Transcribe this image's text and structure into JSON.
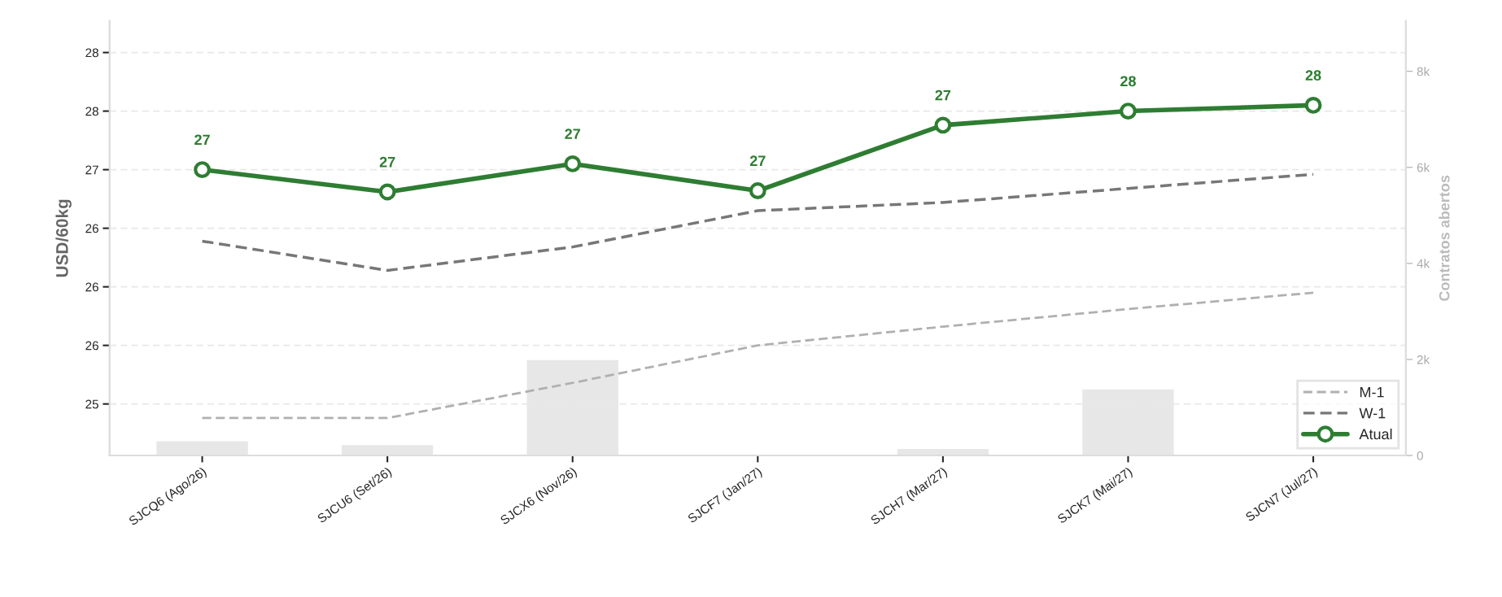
{
  "chart_data": {
    "type": "line",
    "ylabel": "USD/60kg",
    "y2label": "Contratos abertos",
    "categories": [
      "SJCQ6 (Ago/26)",
      "SJCU6 (Set/26)",
      "SJCX6 (Nov/26)",
      "SJCF7 (Jan/27)",
      "SJCH7 (Mar/27)",
      "SJCK7 (Mai/27)",
      "SJCN7 (Jul/27)"
    ],
    "series": [
      {
        "type": "bar",
        "axis": "y2",
        "color": "#e6e7e6",
        "values": [
          310,
          230,
          2000,
          null,
          150,
          1390,
          null
        ]
      },
      {
        "name": "M-1",
        "color": "#b0b0b0",
        "line_style": "dashed",
        "values": [
          24.88,
          24.88,
          25.18,
          25.5,
          25.66,
          25.81,
          25.95
        ]
      },
      {
        "name": "W-1",
        "color": "#777777",
        "line_style": "dashed",
        "values": [
          26.39,
          26.14,
          26.34,
          26.65,
          26.72,
          26.84,
          26.96
        ]
      },
      {
        "name": "Atual",
        "color": "#2e7d32",
        "line_style": "solid",
        "marker": "circle",
        "values": [
          27.0,
          26.81,
          27.05,
          26.82,
          27.38,
          27.5,
          27.55
        ],
        "value_labels": [
          "27",
          "27",
          "27",
          "27",
          "27",
          "28",
          "28"
        ]
      }
    ],
    "ylim": [
      24.56,
      28.27
    ],
    "yticks": [
      {
        "value": 25.0,
        "label": "25"
      },
      {
        "value": 25.5,
        "label": "26"
      },
      {
        "value": 26.0,
        "label": "26"
      },
      {
        "value": 26.5,
        "label": "26"
      },
      {
        "value": 27.0,
        "label": "27"
      },
      {
        "value": 27.5,
        "label": "28"
      },
      {
        "value": 28.0,
        "label": "28"
      }
    ],
    "y2lim": [
      0,
      9050
    ],
    "y2ticks": [
      0,
      {
        "value": 2000,
        "label": "2k"
      },
      {
        "value": 4000,
        "label": "4k"
      },
      {
        "value": 6000,
        "label": "6k"
      },
      {
        "value": 8000,
        "label": "8k"
      }
    ],
    "grid": "y",
    "legend": "bottom right"
  }
}
